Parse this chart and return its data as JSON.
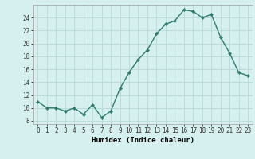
{
  "x": [
    0,
    1,
    2,
    3,
    4,
    5,
    6,
    7,
    8,
    9,
    10,
    11,
    12,
    13,
    14,
    15,
    16,
    17,
    18,
    19,
    20,
    21,
    22,
    23
  ],
  "y": [
    11,
    10,
    10,
    9.5,
    10,
    9,
    10.5,
    8.5,
    9.5,
    13,
    15.5,
    17.5,
    19,
    21.5,
    23,
    23.5,
    25.2,
    25,
    24,
    24.5,
    21,
    18.5,
    15.5,
    15
  ],
  "line_color": "#2e7d6e",
  "marker_color": "#2e7d6e",
  "bg_color": "#d6f0f0",
  "grid_color": "#b8d8d8",
  "xlabel": "Humidex (Indice chaleur)",
  "ylabel_ticks": [
    8,
    10,
    12,
    14,
    16,
    18,
    20,
    22,
    24
  ],
  "ylim": [
    7.5,
    26.0
  ],
  "xlim": [
    -0.5,
    23.5
  ],
  "xlabel_fontsize": 6.5,
  "tick_fontsize": 5.5,
  "line_width": 1.0,
  "marker_size": 2.2
}
